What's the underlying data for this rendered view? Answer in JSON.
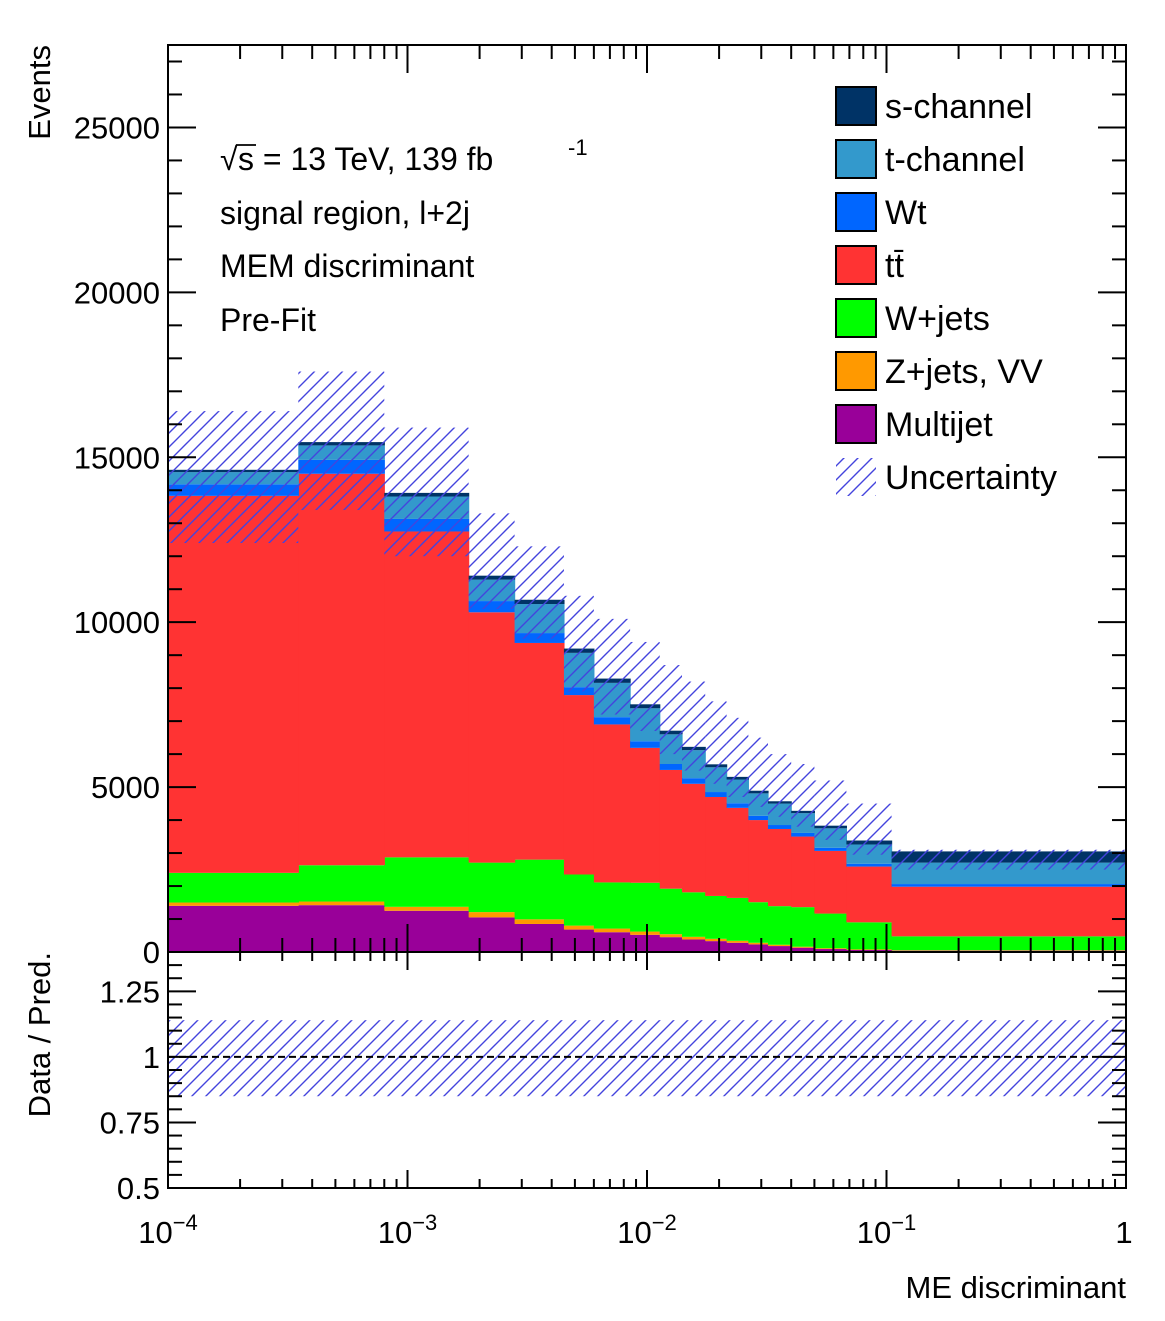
{
  "chart_data": [
    {
      "type": "stacked-histogram",
      "panel": "main",
      "ylabel": "Events",
      "ylim": [
        0,
        27500
      ],
      "y_ticks": [
        "0",
        "5000",
        "10000",
        "15000",
        "20000",
        "25000"
      ],
      "y_tick_values": [
        0,
        5000,
        10000,
        15000,
        20000,
        25000
      ],
      "x_scale": "log",
      "xlim": [
        0.0001,
        1
      ],
      "annotations": {
        "energy_prefix": "s = 13 TeV, 139 fb",
        "sqrt_symbol": "√",
        "lumi_exp": "-1",
        "region": "signal region, l+2j",
        "discriminant": "MEM discriminant",
        "stage": "Pre-Fit"
      },
      "bin_edges": [
        0.0001,
        0.00035,
        0.0008,
        0.0018,
        0.0028,
        0.0045,
        0.006,
        0.0085,
        0.0113,
        0.014,
        0.0175,
        0.0215,
        0.0265,
        0.032,
        0.04,
        0.05,
        0.068,
        0.105,
        1
      ],
      "series": [
        {
          "name": "Multijet",
          "color": "#990099",
          "values": [
            1400,
            1420,
            1250,
            1050,
            850,
            680,
            600,
            520,
            450,
            380,
            330,
            280,
            230,
            180,
            130,
            90,
            60,
            40
          ]
        },
        {
          "name": "Z+jets, VV",
          "color": "#ff9900",
          "values": [
            100,
            110,
            120,
            160,
            140,
            120,
            110,
            100,
            90,
            80,
            70,
            60,
            50,
            40,
            30,
            25,
            20,
            15
          ]
        },
        {
          "name": "W+jets",
          "color": "#00ff00",
          "values": [
            900,
            1100,
            1500,
            1500,
            1810,
            1550,
            1400,
            1480,
            1380,
            1350,
            1300,
            1300,
            1230,
            1170,
            1200,
            1050,
            820,
            420
          ]
        },
        {
          "name": "tt̄",
          "color": "#ff3333",
          "values": [
            11430,
            11870,
            9880,
            7590,
            6570,
            5440,
            4790,
            4090,
            3600,
            3290,
            3000,
            2730,
            2490,
            2340,
            2140,
            1900,
            1690,
            1505
          ]
        },
        {
          "name": "Wt",
          "color": "#0066ff",
          "values": [
            350,
            420,
            380,
            340,
            300,
            240,
            220,
            200,
            180,
            170,
            150,
            140,
            130,
            120,
            110,
            95,
            85,
            80
          ]
        },
        {
          "name": "t-channel",
          "color": "#3399cc",
          "values": [
            370,
            440,
            680,
            650,
            880,
            1040,
            1040,
            1000,
            900,
            850,
            750,
            720,
            680,
            650,
            600,
            590,
            585,
            650
          ]
        },
        {
          "name": "s-channel",
          "color": "#003366",
          "values": [
            70,
            100,
            110,
            120,
            130,
            130,
            130,
            120,
            110,
            100,
            90,
            80,
            80,
            70,
            70,
            80,
            120,
            340
          ]
        }
      ],
      "uncertainty_band": {
        "name": "Uncertainty",
        "hatch_color": "#4444dd",
        "lower": [
          12400,
          13400,
          12000,
          10400,
          9500,
          7900,
          7200,
          6700,
          6000,
          5500,
          5100,
          4700,
          4400,
          4100,
          3800,
          3400,
          2950,
          2500
        ],
        "upper": [
          16400,
          17600,
          15900,
          13300,
          12300,
          10800,
          10100,
          9400,
          8700,
          8200,
          7600,
          7100,
          6500,
          6000,
          5700,
          5200,
          4500,
          3100
        ]
      },
      "legend": {
        "position": "top-right",
        "entries": [
          "s-channel",
          "t-channel",
          "Wt",
          "tt̄",
          "W+jets",
          "Z+jets, VV",
          "Multijet",
          "Uncertainty"
        ]
      }
    },
    {
      "type": "ratio",
      "panel": "ratio",
      "ylabel": "Data / Pred.",
      "ylim": [
        0.5,
        1.4
      ],
      "y_ticks": [
        "0.5",
        "0.75",
        "1",
        "1.25"
      ],
      "y_tick_values": [
        0.5,
        0.75,
        1.0,
        1.25
      ],
      "xlabel": "ME discriminant",
      "x_ticks": [
        {
          "value": 0.0001,
          "base": "10",
          "exp": "−4"
        },
        {
          "value": 0.001,
          "base": "10",
          "exp": "−3"
        },
        {
          "value": 0.01,
          "base": "10",
          "exp": "−2"
        },
        {
          "value": 0.1,
          "base": "10",
          "exp": "−1"
        },
        {
          "value": 1,
          "base": "1",
          "exp": ""
        }
      ],
      "reference_line": 1.0,
      "uncertainty_band": {
        "lower": 0.85,
        "upper": 1.14
      }
    }
  ]
}
